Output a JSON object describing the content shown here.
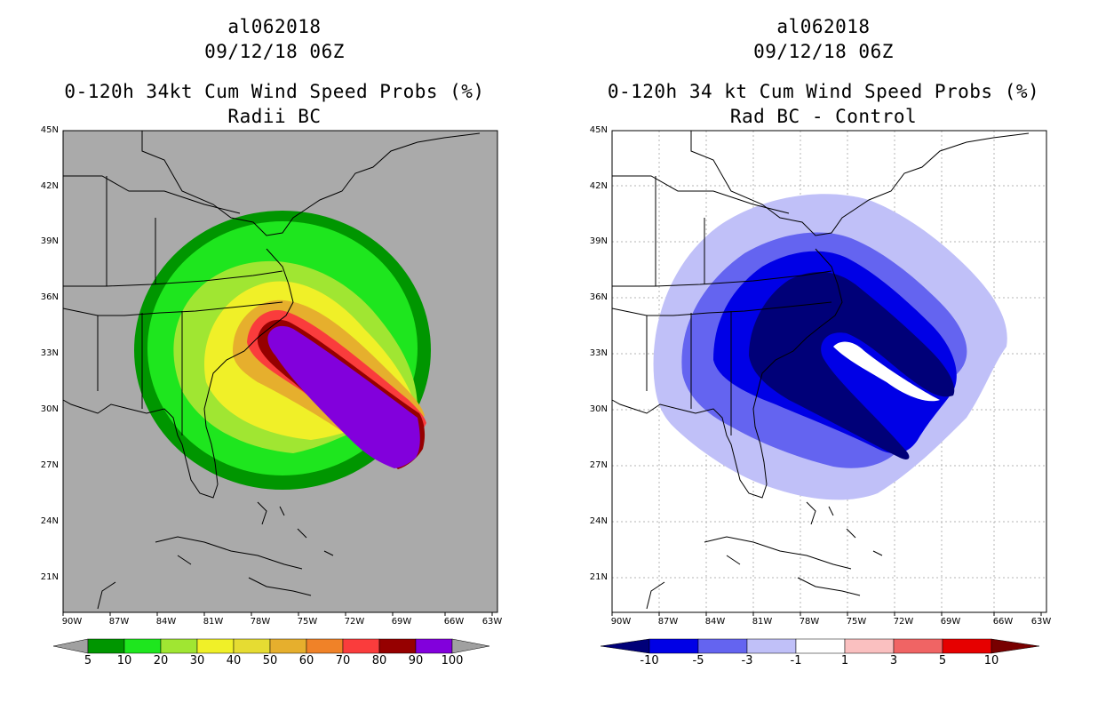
{
  "left": {
    "storm_id": "al062018",
    "datetime": "09/12/18 06Z",
    "product": "0-120h 34kt Cum Wind Speed Probs (%)",
    "subtitle": "Radii BC",
    "colorbar": {
      "labels": [
        "5",
        "10",
        "20",
        "30",
        "40",
        "50",
        "60",
        "70",
        "80",
        "90",
        "100"
      ],
      "colors": [
        "#009600",
        "#1ee61e",
        "#a0e632",
        "#f0f028",
        "#e6dc32",
        "#e6af2d",
        "#f08228",
        "#fa3c3c",
        "#960000",
        "#8200dc"
      ],
      "under_color": "#a0a0a0",
      "over_color": "#a0a0a0"
    },
    "background_color": "#aaaaaa"
  },
  "right": {
    "storm_id": "al062018",
    "datetime": "09/12/18 06Z",
    "product": "0-120h 34 kt Cum Wind Speed Probs (%)",
    "subtitle": "Rad BC - Control",
    "colorbar": {
      "labels": [
        "-10",
        "-5",
        "-3",
        "-1",
        "1",
        "3",
        "5",
        "10"
      ],
      "colors": [
        "#0000e6",
        "#6464f0",
        "#c0c0f8",
        "#ffffff",
        "#fac0c0",
        "#f06464",
        "#e60000"
      ],
      "under_color": "#000078",
      "over_color": "#780000"
    },
    "background_color": "#ffffff"
  },
  "lat_labels": [
    "45N",
    "42N",
    "39N",
    "36N",
    "33N",
    "30N",
    "27N",
    "24N",
    "21N"
  ],
  "lon_labels": [
    "90W",
    "87W",
    "84W",
    "81W",
    "78W",
    "75W",
    "72W",
    "69W",
    "66W",
    "63W"
  ]
}
